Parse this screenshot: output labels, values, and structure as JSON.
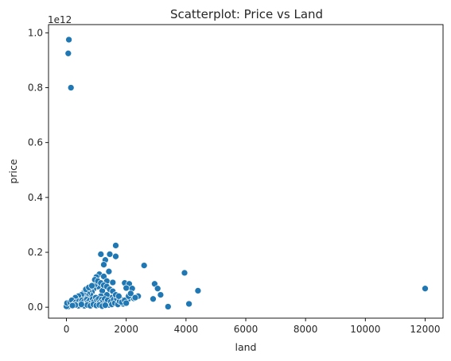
{
  "chart_data": {
    "type": "scatter",
    "title": "Scatterplot: Price vs Land",
    "xlabel": "land",
    "ylabel": "price",
    "y_offset_text": "1e12",
    "xlim": [
      -600,
      12600
    ],
    "ylim": [
      -40000000000.0,
      1030000000000.0
    ],
    "x_ticks": [
      0,
      2000,
      4000,
      6000,
      8000,
      10000,
      12000
    ],
    "x_tick_labels": [
      "0",
      "2000",
      "4000",
      "6000",
      "8000",
      "10000",
      "12000"
    ],
    "y_ticks": [
      0,
      200000000000.0,
      400000000000.0,
      600000000000.0,
      800000000000.0,
      1000000000000.0
    ],
    "y_tick_labels": [
      "0.0",
      "0.2",
      "0.4",
      "0.6",
      "0.8",
      "1.0"
    ],
    "grid": false,
    "point_color": "#1f77b4",
    "points": [
      [
        80,
        975000000000.0
      ],
      [
        60,
        925000000000.0
      ],
      [
        150,
        800000000000.0
      ],
      [
        1650,
        225000000000.0
      ],
      [
        1150,
        193000000000.0
      ],
      [
        1450,
        193000000000.0
      ],
      [
        1650,
        185000000000.0
      ],
      [
        1300,
        172000000000.0
      ],
      [
        1250,
        155000000000.0
      ],
      [
        2600,
        152000000000.0
      ],
      [
        1420,
        130000000000.0
      ],
      [
        3950,
        125000000000.0
      ],
      [
        1100,
        120000000000.0
      ],
      [
        1250,
        112000000000.0
      ],
      [
        1000,
        110000000000.0
      ],
      [
        1350,
        95000000000.0
      ],
      [
        1550,
        90000000000.0
      ],
      [
        1950,
        88000000000.0
      ],
      [
        2950,
        85000000000.0
      ],
      [
        2100,
        85000000000.0
      ],
      [
        3050,
        68000000000.0
      ],
      [
        2000,
        70000000000.0
      ],
      [
        2200,
        68000000000.0
      ],
      [
        12000,
        68000000000.0
      ],
      [
        4400,
        60000000000.0
      ],
      [
        3150,
        45000000000.0
      ],
      [
        2400,
        40000000000.0
      ],
      [
        2250,
        32000000000.0
      ],
      [
        2900,
        30000000000.0
      ],
      [
        4100,
        12000000000.0
      ],
      [
        3400,
        2000000000.0
      ],
      [
        2050,
        28000000000.0
      ],
      [
        1800,
        30000000000.0
      ],
      [
        1700,
        20000000000.0
      ],
      [
        1900,
        12000000000.0
      ],
      [
        1600,
        25000000000.0
      ],
      [
        1500,
        35000000000.0
      ],
      [
        1450,
        20000000000.0
      ],
      [
        1350,
        45000000000.0
      ],
      [
        1200,
        60000000000.0
      ],
      [
        1150,
        40000000000.0
      ],
      [
        1050,
        75000000000.0
      ],
      [
        950,
        82000000000.0
      ],
      [
        900,
        65000000000.0
      ],
      [
        850,
        55000000000.0
      ],
      [
        800,
        45000000000.0
      ],
      [
        750,
        60000000000.0
      ],
      [
        700,
        50000000000.0
      ],
      [
        650,
        40000000000.0
      ],
      [
        600,
        35000000000.0
      ],
      [
        550,
        50000000000.0
      ],
      [
        500,
        45000000000.0
      ],
      [
        450,
        30000000000.0
      ],
      [
        400,
        40000000000.0
      ],
      [
        350,
        25000000000.0
      ],
      [
        300,
        35000000000.0
      ],
      [
        250,
        20000000000.0
      ],
      [
        200,
        15000000000.0
      ],
      [
        150,
        10000000000.0
      ],
      [
        100,
        5000000000.0
      ],
      [
        50,
        2000000000.0
      ],
      [
        0,
        3000000000.0
      ],
      [
        20,
        15000000000.0
      ],
      [
        120,
        18000000000.0
      ],
      [
        180,
        25000000000.0
      ],
      [
        220,
        8000000000.0
      ],
      [
        280,
        12000000000.0
      ],
      [
        320,
        18000000000.0
      ],
      [
        380,
        12000000000.0
      ],
      [
        420,
        22000000000.0
      ],
      [
        480,
        15000000000.0
      ],
      [
        520,
        25000000000.0
      ],
      [
        580,
        20000000000.0
      ],
      [
        620,
        12000000000.0
      ],
      [
        680,
        28000000000.0
      ],
      [
        720,
        18000000000.0
      ],
      [
        780,
        25000000000.0
      ],
      [
        820,
        15000000000.0
      ],
      [
        880,
        30000000000.0
      ],
      [
        920,
        20000000000.0
      ],
      [
        980,
        35000000000.0
      ],
      [
        1020,
        25000000000.0
      ],
      [
        1080,
        30000000000.0
      ],
      [
        1120,
        18000000000.0
      ],
      [
        1180,
        28000000000.0
      ],
      [
        1220,
        20000000000.0
      ],
      [
        1280,
        30000000000.0
      ],
      [
        1320,
        15000000000.0
      ],
      [
        1380,
        25000000000.0
      ],
      [
        1420,
        8000000000.0
      ],
      [
        1480,
        20000000000.0
      ],
      [
        1520,
        10000000000.0
      ],
      [
        1580,
        28000000000.0
      ],
      [
        1620,
        15000000000.0
      ],
      [
        1680,
        32000000000.0
      ],
      [
        1720,
        10000000000.0
      ],
      [
        1780,
        22000000000.0
      ],
      [
        1850,
        18000000000.0
      ],
      [
        1950,
        25000000000.0
      ],
      [
        2000,
        15000000000.0
      ],
      [
        2080,
        40000000000.0
      ],
      [
        2150,
        50000000000.0
      ],
      [
        2300,
        35000000000.0
      ],
      [
        600,
        5000000000.0
      ],
      [
        700,
        8000000000.0
      ],
      [
        800,
        5000000000.0
      ],
      [
        900,
        10000000000.0
      ],
      [
        1000,
        6000000000.0
      ],
      [
        1100,
        8000000000.0
      ],
      [
        1200,
        4000000000.0
      ],
      [
        1300,
        7000000000.0
      ],
      [
        400,
        5000000000.0
      ],
      [
        300,
        8000000000.0
      ],
      [
        500,
        10000000000.0
      ],
      [
        200,
        6000000000.0
      ],
      [
        650,
        65000000000.0
      ],
      [
        750,
        72000000000.0
      ],
      [
        850,
        78000000000.0
      ],
      [
        950,
        100000000000.0
      ],
      [
        1050,
        95000000000.0
      ],
      [
        1150,
        88000000000.0
      ],
      [
        1250,
        80000000000.0
      ],
      [
        1350,
        75000000000.0
      ],
      [
        1450,
        65000000000.0
      ],
      [
        1550,
        58000000000.0
      ],
      [
        1650,
        45000000000.0
      ],
      [
        1750,
        40000000000.0
      ]
    ]
  }
}
